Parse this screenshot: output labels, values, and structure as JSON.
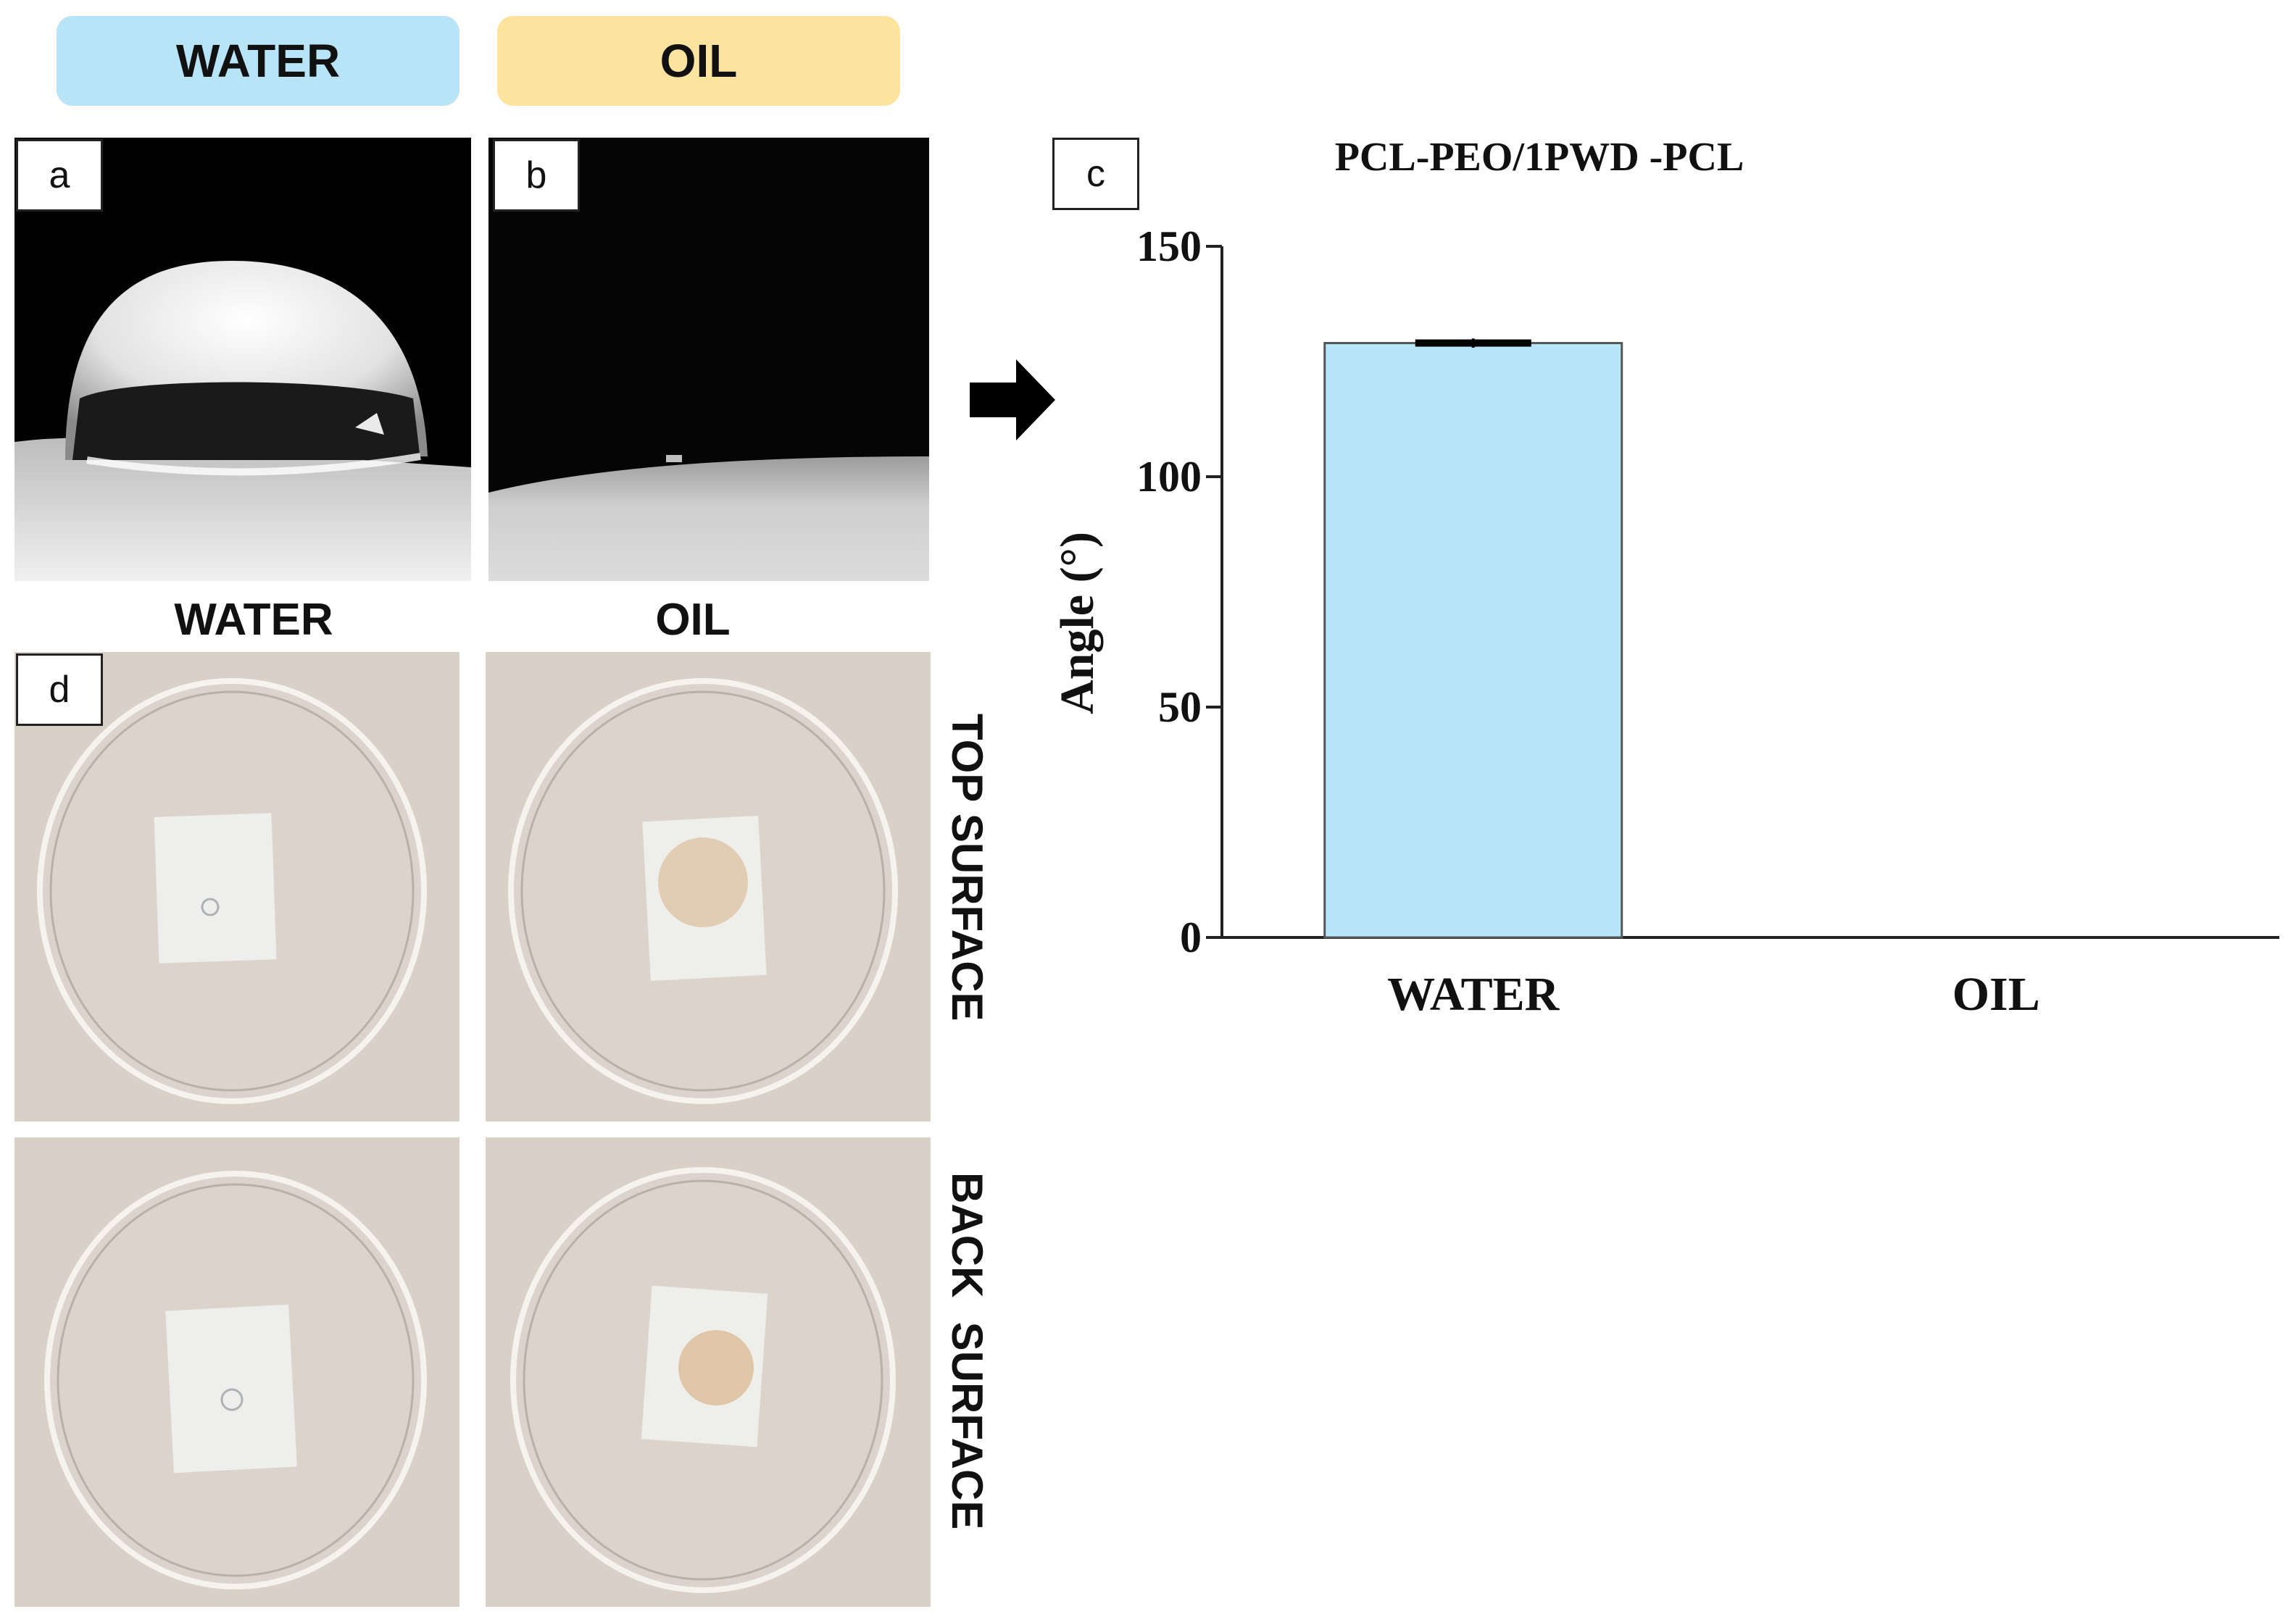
{
  "headers": {
    "water": "WATER",
    "oil": "OIL"
  },
  "panel_labels": {
    "a": "a",
    "b": "b",
    "c": "c",
    "d": "d"
  },
  "photo_columns": {
    "water": "WATER",
    "oil": "OIL"
  },
  "photo_rows": {
    "top": "TOP SURFACE",
    "back": "BACK  SURFACE"
  },
  "colors": {
    "water_pill": "#b8e4f7",
    "oil_pill": "#fde49e",
    "bar_fill": "#b7e6fa"
  },
  "icons": {
    "arrow": "right-arrow-icon"
  },
  "chart_data": {
    "type": "bar",
    "title": "PCL-PEO/1PWD -PCL",
    "ylabel": "Angle (°)",
    "xlabel": "",
    "categories": [
      "WATER",
      "OIL"
    ],
    "values": [
      129,
      0
    ],
    "error": [
      1,
      0
    ],
    "ylim": [
      0,
      150
    ],
    "yticks": [
      0,
      50,
      100,
      150
    ],
    "ytick_labels": [
      "0",
      "50",
      "100",
      "150"
    ],
    "grid": false
  }
}
